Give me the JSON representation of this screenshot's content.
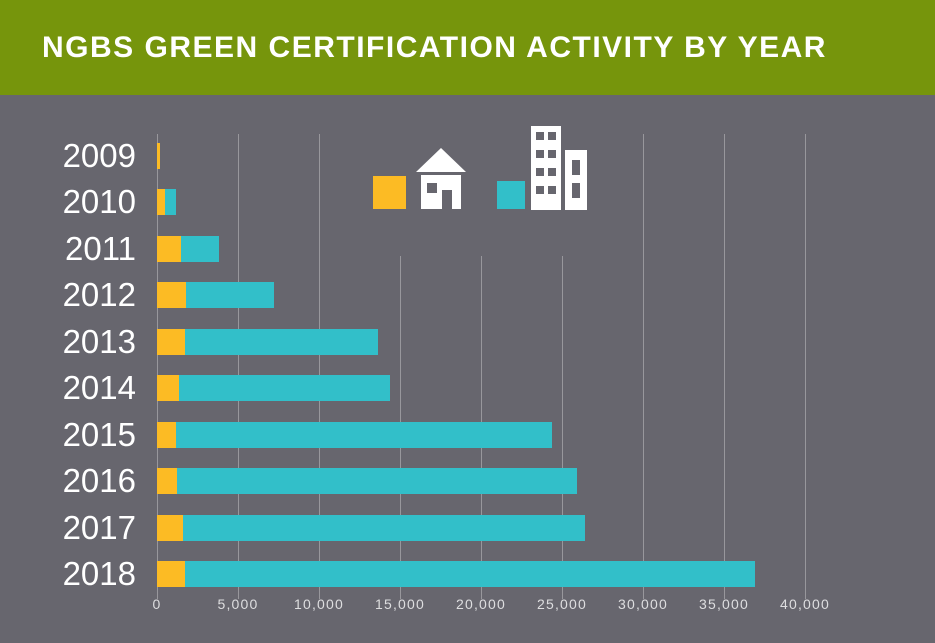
{
  "header": {
    "title": "NGBS GREEN CERTIFICATION ACTIVITY BY YEAR"
  },
  "colors": {
    "header_bg": "#76950C",
    "background": "#67666E",
    "single_family": "#FCBB24",
    "multifamily": "#32BFC9",
    "gridline": "rgba(255,255,255,0.32)",
    "axis_text": "#DEDEE0",
    "title_text": "#FFFFFF",
    "year_text": "#FFFFFF",
    "icon": "#FFFFFF"
  },
  "legend": {
    "items": [
      {
        "icon": "house-icon",
        "series": "single_family",
        "swatch_color": "#FCBB24"
      },
      {
        "icon": "building-icon",
        "series": "multifamily",
        "swatch_color": "#32BFC9"
      }
    ]
  },
  "chart_data": {
    "type": "bar",
    "orientation": "horizontal",
    "stacked": true,
    "title": "NGBS GREEN CERTIFICATION ACTIVITY BY YEAR",
    "categories": [
      "2009",
      "2010",
      "2011",
      "2012",
      "2013",
      "2014",
      "2015",
      "2016",
      "2017",
      "2018"
    ],
    "series": [
      {
        "name": "single_family",
        "color": "#FCBB24",
        "values": [
          200,
          500,
          1500,
          1800,
          1750,
          1350,
          1200,
          1250,
          1600,
          1750
        ]
      },
      {
        "name": "multifamily",
        "color": "#32BFC9",
        "values": [
          0,
          650,
          2300,
          5450,
          11900,
          13050,
          23200,
          24700,
          24800,
          35150
        ]
      }
    ],
    "totals": [
      200,
      1150,
      3800,
      7250,
      13650,
      14400,
      24400,
      25950,
      26400,
      36900
    ],
    "x_axis": {
      "tick_values": [
        0,
        5000,
        10000,
        15000,
        20000,
        25000,
        30000,
        35000,
        40000
      ],
      "tick_labels": [
        "0",
        "5,000",
        "10,000",
        "15,000",
        "20,000",
        "25,000",
        "30,000",
        "35,000",
        "40,000"
      ],
      "range": [
        0,
        42000
      ]
    },
    "grid": true,
    "legend_position": "top-center-icons-only"
  }
}
